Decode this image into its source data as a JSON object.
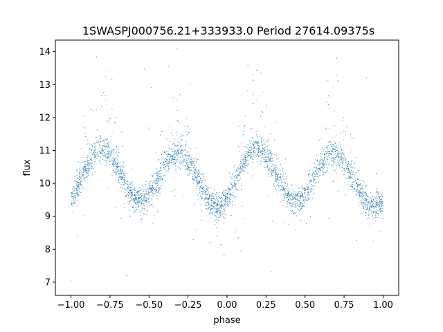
{
  "chart_data": {
    "type": "scatter",
    "title": "1SWASPJ000756.21+333933.0 Period 27614.09375s",
    "xlabel": "phase",
    "ylabel": "flux",
    "xlim": [
      -1.1,
      1.1
    ],
    "ylim": [
      6.6,
      14.35
    ],
    "xticks": [
      -1.0,
      -0.75,
      -0.5,
      -0.25,
      0.0,
      0.25,
      0.5,
      0.75,
      1.0
    ],
    "xtick_labels": [
      "−1.00",
      "−0.75",
      "−0.50",
      "−0.25",
      "0.00",
      "0.25",
      "0.50",
      "0.75",
      "1.00"
    ],
    "yticks": [
      7,
      8,
      9,
      10,
      11,
      12,
      13,
      14
    ],
    "ytick_labels": [
      "7",
      "8",
      "9",
      "10",
      "11",
      "12",
      "13",
      "14"
    ],
    "grid": false,
    "point_color": "#1f77b4",
    "x_range": [
      -1.0,
      1.0
    ],
    "curve": {
      "maxima": [
        {
          "phase": -0.8,
          "flux": 11.05
        },
        {
          "phase": -0.31,
          "flux": 10.9
        },
        {
          "phase": 0.19,
          "flux": 11.05
        },
        {
          "phase": 0.68,
          "flux": 10.9
        }
      ],
      "minima": [
        {
          "phase": -0.56,
          "flux": 9.45
        },
        {
          "phase": -0.06,
          "flux": 9.28
        },
        {
          "phase": 0.44,
          "flux": 9.45
        },
        {
          "phase": 0.94,
          "flux": 9.28
        }
      ],
      "scatter_sigma": 0.2
    }
  }
}
